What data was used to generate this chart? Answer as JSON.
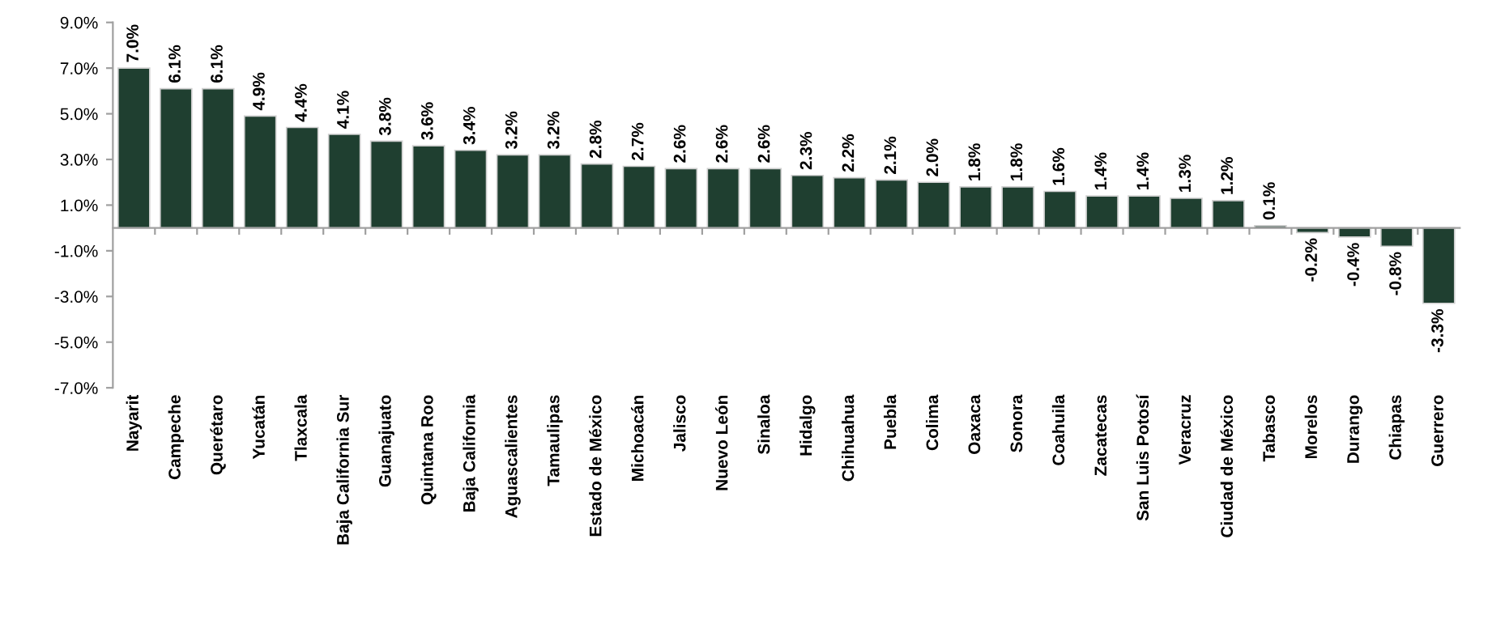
{
  "chart_data": {
    "type": "bar",
    "categories": [
      "Nayarit",
      "Campeche",
      "Querétaro",
      "Yucatán",
      "Tlaxcala",
      "Baja California Sur",
      "Guanajuato",
      "Quintana Roo",
      "Baja California",
      "Aguascalientes",
      "Tamaulipas",
      "Estado de México",
      "Michoacán",
      "Jalisco",
      "Nuevo León",
      "Sinaloa",
      "Hidalgo",
      "Chihuahua",
      "Puebla",
      "Colima",
      "Oaxaca",
      "Sonora",
      "Coahuila",
      "Zacatecas",
      "San Luis Potosí",
      "Veracruz",
      "Ciudad de México",
      "Tabasco",
      "Morelos",
      "Durango",
      "Chiapas",
      "Guerrero"
    ],
    "values": [
      7.0,
      6.1,
      6.1,
      4.9,
      4.4,
      4.1,
      3.8,
      3.6,
      3.4,
      3.2,
      3.2,
      2.8,
      2.7,
      2.6,
      2.6,
      2.6,
      2.3,
      2.2,
      2.1,
      2.0,
      1.8,
      1.8,
      1.6,
      1.4,
      1.4,
      1.3,
      1.2,
      0.1,
      -0.2,
      -0.4,
      -0.8,
      -3.3
    ],
    "value_labels": [
      "7.0%",
      "6.1%",
      "6.1%",
      "4.9%",
      "4.4%",
      "4.1%",
      "3.8%",
      "3.6%",
      "3.4%",
      "3.2%",
      "3.2%",
      "2.8%",
      "2.7%",
      "2.6%",
      "2.6%",
      "2.6%",
      "2.3%",
      "2.2%",
      "2.1%",
      "2.0%",
      "1.8%",
      "1.8%",
      "1.6%",
      "1.4%",
      "1.4%",
      "1.3%",
      "1.2%",
      "0.1%",
      "-0.2%",
      "-0.4%",
      "-0.8%",
      "-3.3%"
    ],
    "color": "#1f3f30",
    "ylim": [
      -7.0,
      9.0
    ],
    "yticks": [
      {
        "value": -7.0,
        "label": "-7.0%"
      },
      {
        "value": -5.0,
        "label": "-5.0%"
      },
      {
        "value": -3.0,
        "label": "-3.0%"
      },
      {
        "value": -1.0,
        "label": "-1.0%"
      },
      {
        "value": 1.0,
        "label": "1.0%"
      },
      {
        "value": 3.0,
        "label": "3.0%"
      },
      {
        "value": 5.0,
        "label": "5.0%"
      },
      {
        "value": 7.0,
        "label": "7.0%"
      },
      {
        "value": 9.0,
        "label": "9.0%"
      }
    ],
    "grid": false,
    "legend": false
  }
}
